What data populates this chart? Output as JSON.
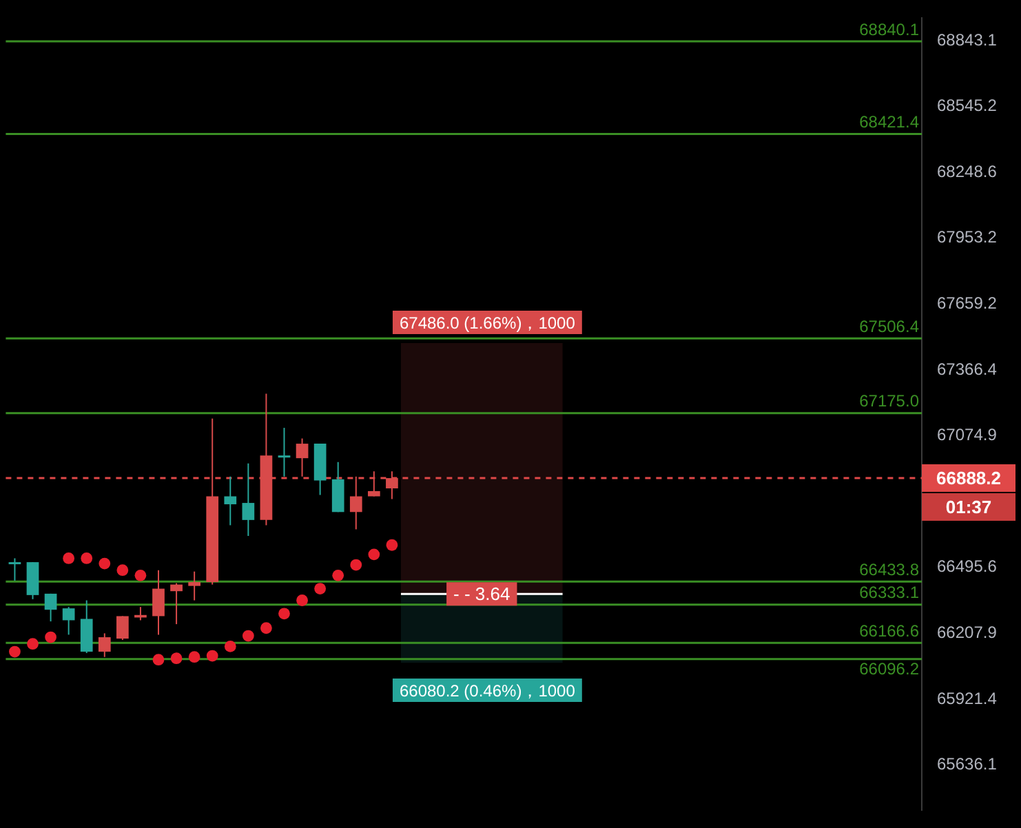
{
  "chart_data": {
    "type": "candlestick",
    "categories": [
      null,
      null,
      null,
      null,
      null,
      null,
      null,
      null,
      null,
      null,
      null,
      null,
      null,
      null,
      null,
      null,
      null,
      null,
      null,
      null,
      null,
      null,
      null,
      null,
      null,
      null,
      null,
      null,
      null,
      null,
      null,
      null,
      null,
      null,
      null,
      null,
      null,
      null,
      null,
      null,
      null,
      null,
      null,
      null,
      null,
      null,
      null,
      null,
      null,
      null,
      null
    ],
    "ohlc": [
      [
        66519,
        66536,
        66438,
        66513
      ],
      [
        66519,
        66519,
        66357,
        66375
      ],
      [
        66381,
        66381,
        66260,
        66311
      ],
      [
        66317,
        66323,
        66202,
        66265
      ],
      [
        66271,
        66352,
        66122,
        66128
      ],
      [
        66128,
        66208,
        66105,
        66191
      ],
      [
        66185,
        66283,
        66179,
        66283
      ],
      [
        66277,
        66323,
        66265,
        66288
      ],
      [
        66283,
        66484,
        66202,
        66403
      ],
      [
        66392,
        66427,
        66248,
        66421
      ],
      [
        66415,
        66478,
        66352,
        66432
      ],
      [
        66432,
        67151,
        66421,
        66808
      ],
      [
        66808,
        66895,
        66681,
        66773
      ],
      [
        66779,
        66953,
        66634,
        66704
      ],
      [
        66704,
        67261,
        66681,
        66988
      ],
      [
        66988,
        67110,
        66895,
        66982
      ],
      [
        66976,
        67063,
        66895,
        67040
      ],
      [
        67040,
        67040,
        66814,
        66878
      ],
      [
        66883,
        66959,
        66739,
        66739
      ],
      [
        66739,
        66895,
        66663,
        66808
      ],
      [
        66808,
        66918,
        66808,
        66831
      ],
      [
        66843,
        66918,
        66796,
        66888.2
      ],
      null,
      null,
      null,
      null,
      null,
      null,
      null,
      null,
      null,
      null,
      null,
      null,
      null,
      null,
      null,
      null,
      null,
      null,
      null,
      null,
      null,
      null,
      null,
      null,
      null,
      null,
      null,
      null,
      null
    ],
    "colors": [
      "#26a69a",
      "#26a69a",
      "#26a69a",
      "#26a69a",
      "#26a69a",
      "#d84a4a",
      "#d84a4a",
      "#d84a4a",
      "#d84a4a",
      "#d84a4a",
      "#d84a4a",
      "#d84a4a",
      "#26a69a",
      "#26a69a",
      "#d84a4a",
      "#26a69a",
      "#d84a4a",
      "#26a69a",
      "#26a69a",
      "#d84a4a",
      "#d84a4a",
      "#d84a4a",
      null,
      null,
      null,
      null,
      null,
      null,
      null,
      null,
      null,
      null,
      null,
      null,
      null,
      null,
      null,
      null,
      null,
      null,
      null,
      null,
      null,
      null,
      null,
      null,
      null,
      null,
      null,
      null,
      null
    ],
    "series": [
      {
        "type": "scatter",
        "color": "#e8202e",
        "values": [
          66128,
          66162,
          66191,
          66536,
          66536,
          66513,
          66484,
          66461,
          66093,
          66099,
          66105,
          66110,
          66151,
          66197,
          66231,
          66294,
          66352,
          66403,
          66461,
          66507,
          66553,
          66594,
          null,
          null,
          null,
          null,
          null,
          null,
          null,
          null,
          null,
          null,
          null,
          null,
          null,
          null,
          null,
          null,
          null,
          null,
          null,
          null,
          null,
          null,
          null,
          null,
          null,
          null,
          null,
          null,
          null
        ]
      }
    ],
    "marker": "circle",
    "log": true,
    "grid": false,
    "legend": false,
    "tick_labels": "y",
    "ylim": [
      65443,
      68945
    ],
    "yticks": [
      68843.1,
      68545.2,
      68248.6,
      67953.2,
      67659.2,
      67366.4,
      67074.9,
      66495.6,
      66207.9,
      65921.4,
      65636.1
    ],
    "ref_lines": [
      {
        "axis": "y",
        "value": 68840.1,
        "label": "68840.1",
        "color": "#3a8f24"
      },
      {
        "axis": "y",
        "value": 68421.4,
        "label": "68421.4",
        "color": "#3a8f24"
      },
      {
        "axis": "y",
        "value": 67506.4,
        "label": "67506.4",
        "color": "#3a8f24"
      },
      {
        "axis": "y",
        "value": 67175.0,
        "label": "67175.0",
        "color": "#3a8f24"
      },
      {
        "axis": "y",
        "value": 66433.8,
        "label": "66433.8",
        "color": "#3a8f24"
      },
      {
        "axis": "y",
        "value": 66333.1,
        "label": "66333.1",
        "color": "#3a8f24"
      },
      {
        "axis": "y",
        "value": 66166.6,
        "label": "66166.6",
        "color": "#3a8f24"
      },
      {
        "axis": "y",
        "value": 66096.2,
        "label": "66096.2",
        "color": "#3a8f24"
      },
      {
        "axis": "y",
        "value": 66888.2,
        "label": "66888.2",
        "color": "#e04848",
        "line_style": "dashed"
      },
      {
        "axis": "y",
        "value": 66380,
        "color": "#ffffff"
      }
    ],
    "bands": [
      {
        "axis": "y",
        "from": 66380,
        "to": 67486.0,
        "label": "67486.0 (1.66%)，1000",
        "color": "#d84a4a"
      },
      {
        "axis": "y",
        "from": 66080.2,
        "to": 66380,
        "label": "66080.2 (0.46%)，1000",
        "color": "#26a69a"
      }
    ],
    "annotations": [
      "01:37",
      {
        "text": "- - 3.64",
        "y": 66380
      }
    ]
  }
}
